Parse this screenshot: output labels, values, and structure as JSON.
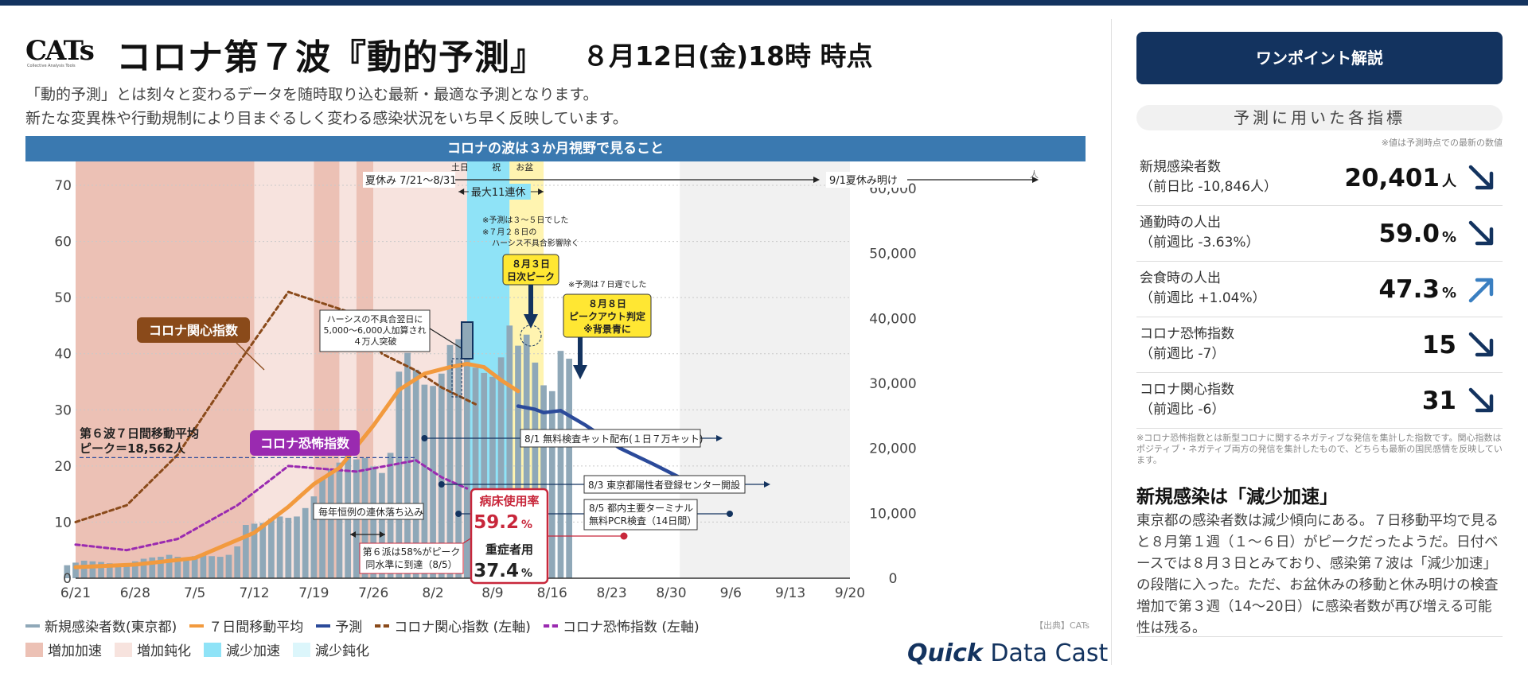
{
  "header": {
    "logo": "CATs",
    "logo_sub": "Collective Analysis Tools",
    "title": "コロナ第７波『動的予測』",
    "date": "８月12日(金)18時 時点",
    "subtitle1": "「動的予測」とは刻々と変わるデータを随時取り込む最新・最適な予測となります。",
    "subtitle2": "新たな変異株や行動規制により目まぐるしく変わる感染状況をいち早く反映しています。"
  },
  "chart_head": "コロナの波は３か月視野で見ること",
  "chart_data": {
    "type": "bar",
    "x_labels": [
      "6/21",
      "6/28",
      "7/5",
      "7/12",
      "7/19",
      "7/26",
      "8/2",
      "8/9",
      "8/16",
      "8/23",
      "8/30",
      "9/6",
      "9/13",
      "9/20"
    ],
    "x_range": [
      "2022-06-21",
      "2022-09-20"
    ],
    "y_left": {
      "min": 0,
      "max": 70,
      "ticks": [
        0,
        10,
        20,
        30,
        40,
        50,
        60,
        70
      ]
    },
    "y_right": {
      "min": 0,
      "max": 60000,
      "ticks": [
        "0",
        "10,000",
        "20,000",
        "30,000",
        "40,000",
        "50,000",
        "60,000"
      ],
      "unit": "人"
    },
    "grid": true,
    "bars_start": "2022-06-20",
    "series": [
      {
        "name": "新規感染者数(東京都)",
        "axis": "right",
        "color": "#8fa8b8",
        "values": [
          2000,
          2400,
          2700,
          2600,
          2500,
          2300,
          2100,
          2200,
          2600,
          3000,
          3200,
          3300,
          3600,
          3300,
          3000,
          3400,
          3500,
          3400,
          3300,
          3600,
          4900,
          8200,
          8400,
          8500,
          9200,
          9500,
          9300,
          9500,
          10800,
          12600,
          15300,
          16800,
          17800,
          18900,
          18300,
          18500,
          17200,
          16200,
          19300,
          31800,
          34700,
          32100,
          29800,
          29600,
          31500,
          35900,
          36800,
          36300,
          32400,
          31600,
          31000,
          34000,
          38900,
          35800,
          37500,
          33200,
          29700,
          28800,
          35000,
          33800
        ]
      },
      {
        "name": "７日間移動平均",
        "axis": "right",
        "color": "#f29a3e",
        "points": [
          [
            "2022-06-21",
            1700
          ],
          [
            "2022-06-28",
            2100
          ],
          [
            "2022-07-05",
            3100
          ],
          [
            "2022-07-12",
            7000
          ],
          [
            "2022-07-16",
            11000
          ],
          [
            "2022-07-19",
            14500
          ],
          [
            "2022-07-22",
            17000
          ],
          [
            "2022-07-26",
            23500
          ],
          [
            "2022-07-29",
            29000
          ],
          [
            "2022-08-01",
            31500
          ],
          [
            "2022-08-04",
            32500
          ],
          [
            "2022-08-06",
            33000
          ],
          [
            "2022-08-08",
            32500
          ],
          [
            "2022-08-10",
            30500
          ],
          [
            "2022-08-12",
            28800
          ]
        ]
      },
      {
        "name": "予測",
        "axis": "right",
        "color": "#2b4a9a",
        "points": [
          [
            "2022-08-12",
            26500
          ],
          [
            "2022-08-14",
            26000
          ],
          [
            "2022-08-15",
            25500
          ],
          [
            "2022-08-17",
            25800
          ],
          [
            "2022-08-20",
            23500
          ],
          [
            "2022-08-24",
            20000
          ],
          [
            "2022-08-28",
            17500
          ],
          [
            "2022-08-31",
            15500
          ]
        ]
      },
      {
        "name": "コロナ関心指数 (左軸)",
        "axis": "left",
        "color": "#8a4a1a",
        "dash": true,
        "points": [
          [
            "2022-06-21",
            10
          ],
          [
            "2022-06-27",
            13
          ],
          [
            "2022-07-03",
            22
          ],
          [
            "2022-07-10",
            38
          ],
          [
            "2022-07-16",
            51
          ],
          [
            "2022-07-24",
            47
          ],
          [
            "2022-07-27",
            40
          ],
          [
            "2022-07-31",
            37
          ],
          [
            "2022-08-03",
            34
          ],
          [
            "2022-08-07",
            31
          ]
        ]
      },
      {
        "name": "コロナ恐怖指数 (左軸)",
        "axis": "left",
        "color": "#9a2ab0",
        "dash": true,
        "points": [
          [
            "2022-06-21",
            6
          ],
          [
            "2022-06-27",
            5
          ],
          [
            "2022-07-03",
            7
          ],
          [
            "2022-07-10",
            13
          ],
          [
            "2022-07-16",
            20
          ],
          [
            "2022-07-24",
            19
          ],
          [
            "2022-07-31",
            21
          ],
          [
            "2022-08-03",
            18
          ],
          [
            "2022-08-06",
            16
          ]
        ]
      }
    ],
    "phases": [
      {
        "name": "増加加速",
        "from": "2022-06-21",
        "to": "2022-07-12",
        "color": "#ecc1b5"
      },
      {
        "name": "増加鈍化",
        "from": "2022-07-12",
        "to": "2022-07-19",
        "color": "#f7e3de"
      },
      {
        "name": "増加加速",
        "from": "2022-07-19",
        "to": "2022-07-22",
        "color": "#ecc1b5"
      },
      {
        "name": "増加鈍化",
        "from": "2022-07-22",
        "to": "2022-07-24",
        "color": "#f7e3de"
      },
      {
        "name": "増加加速",
        "from": "2022-07-24",
        "to": "2022-07-26",
        "color": "#ecc1b5"
      },
      {
        "name": "増加鈍化",
        "from": "2022-07-26",
        "to": "2022-08-06",
        "color": "#f7e3de"
      },
      {
        "name": "減少加速",
        "from": "2022-08-06",
        "to": "2022-08-11",
        "color": "#8fe3f7"
      },
      {
        "name": "お盆",
        "from": "2022-08-11",
        "to": "2022-08-15",
        "color": "#fff4b0"
      },
      {
        "name": "future",
        "from": "2022-08-31",
        "to": "2022-09-20",
        "color": "#f1f1f1"
      }
    ],
    "legend": [
      {
        "label": "新規感染者数(東京都)",
        "type": "line",
        "color": "#8fa8b8"
      },
      {
        "label": "７日間移動平均",
        "type": "line",
        "color": "#f29a3e"
      },
      {
        "label": "予測",
        "type": "line",
        "color": "#2b4a9a"
      },
      {
        "label": "コロナ関心指数 (左軸)",
        "type": "dash",
        "color": "#8a4a1a"
      },
      {
        "label": "コロナ恐怖指数 (左軸)",
        "type": "dash",
        "color": "#9a2ab0"
      },
      {
        "label": "増加加速",
        "type": "box",
        "color": "#ecc1b5"
      },
      {
        "label": "増加鈍化",
        "type": "box",
        "color": "#f7e3de"
      },
      {
        "label": "減少加速",
        "type": "box",
        "color": "#8fe3f7"
      },
      {
        "label": "減少鈍化",
        "type": "box",
        "color": "#dcf6fb"
      }
    ],
    "annotations": {
      "summer": "夏休み 7/21〜8/31",
      "summer_end": "9/1夏休み明け",
      "sat": "土日",
      "holiday": "祝",
      "obon": "お盆",
      "long_holiday": "最大11連休",
      "interest_label": "コロナ関心指数",
      "fear_label": "コロナ恐怖指数",
      "wave6_1": "第６波７日間移動平均",
      "wave6_2": "ピーク＝18,562人",
      "hers_1": "ハーシスの不具合翌日に",
      "hers_2": "5,000〜6,000人加算され",
      "hers_3": "４万人突破",
      "pred_note1": "※予測は３〜５日でした",
      "pred_note2": "※７月２８日の",
      "pred_note3": "ハーシス不具合影響除く",
      "peak_1": "８月３日",
      "peak_2": "日次ピーク",
      "pred_note4": "※予測は７日遅でした",
      "po_1": "８月８日",
      "po_2": "ピークアウト判定",
      "po_3": "※背景青に",
      "kit": "8/1 無料検査キット配布(１日７万キット)",
      "center": "8/3 東京都陽性者登録センター開設",
      "pcr_1": "8/5 都内主要ターミナル",
      "pcr_2": "無料PCR検査（14日間）",
      "yearly": "毎年恒例の連休落ち込み",
      "bed6_1": "第６派は58%がピーク",
      "bed6_2": "同水準に到達（8/5）",
      "bed_label": "病床使用率",
      "bed_value": "59.2",
      "severe_label": "重症者用",
      "severe_value": "37.4",
      "pct": "%"
    }
  },
  "legend_source": "【出典】CATs",
  "brand_bold": "Quick",
  "brand_rest": " Data Cast",
  "sidebar": {
    "button": "ワンポイント解説",
    "indicators_title": "予測に用いた各指標",
    "indicators_note": "※値は予測時点での最新の数値",
    "indicators": [
      {
        "name": "新規感染者数",
        "sub": "（前日比 -10,846人）",
        "value": "20,401",
        "unit": "人",
        "trend": "down",
        "color": "#13335f"
      },
      {
        "name": "通勤時の人出",
        "sub": "（前週比 -3.63%）",
        "value": "59.0",
        "unit": "%",
        "trend": "down",
        "color": "#13335f"
      },
      {
        "name": "会食時の人出",
        "sub": "（前週比 +1.04%）",
        "value": "47.3",
        "unit": "%",
        "trend": "up",
        "color": "#3a7fc1"
      },
      {
        "name": "コロナ恐怖指数",
        "sub": "（前週比 -7）",
        "value": "15",
        "unit": "",
        "trend": "down",
        "color": "#13335f"
      },
      {
        "name": "コロナ関心指数",
        "sub": "（前週比 -6）",
        "value": "31",
        "unit": "",
        "trend": "down",
        "color": "#13335f"
      }
    ],
    "footnote": "※コロナ恐怖指数とは新型コロナに関するネガティブな発信を集計した指数です。関心指数はポジティブ・ネガティブ両方の発信を集計したもので、どちらも最新の国民感情を反映しています。",
    "summary_title": "新規感染は「減少加速」",
    "summary_body": "東京都の感染者数は減少傾向にある。７日移動平均で見ると８月第１週（１〜６日）がピークだったようだ。日付ベースでは８月３日とみており、感染第７波は「減少加速」の段階に入った。ただ、お盆休みの移動と休み明けの検査増加で第３週（14〜20日）に感染者数が再び増える可能性は残る。"
  }
}
